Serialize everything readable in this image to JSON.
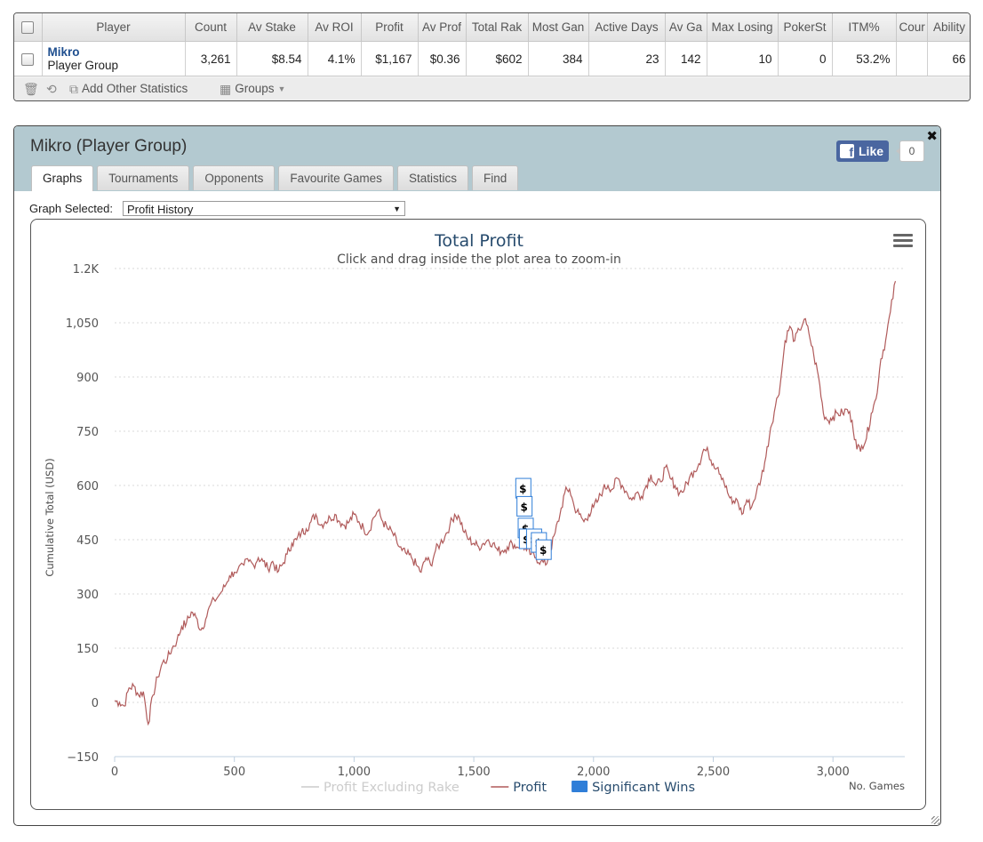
{
  "stats_table": {
    "headers": [
      "Player",
      "Count",
      "Av Stake",
      "Av ROI",
      "Profit",
      "Av Prof",
      "Total Rak",
      "Most Gan",
      "Active Days",
      "Av Ga",
      "Max Losing",
      "PokerSt",
      "ITM%",
      "Cour",
      "Ability"
    ],
    "row": {
      "player_name": "Mikro",
      "player_sub": "Player Group",
      "values": [
        "3,261",
        "$8.54",
        "4.1%",
        "$1,167",
        "$0.36",
        "$602",
        "384",
        "23",
        "142",
        "10",
        "0",
        "53.2%",
        "",
        "66"
      ]
    },
    "toolbar": {
      "add_stats_label": "Add Other Statistics",
      "groups_label": "Groups"
    }
  },
  "profile": {
    "title": "Mikro (Player Group)",
    "fb_like_label": "Like",
    "fb_like_count": "0",
    "tabs": [
      "Graphs",
      "Tournaments",
      "Opponents",
      "Favourite Games",
      "Statistics",
      "Find"
    ],
    "active_tab": "Graphs",
    "graph_selected_label": "Graph Selected:",
    "graph_selected_value": "Profit History"
  },
  "chart_data": {
    "type": "line",
    "title": "Total Profit",
    "subtitle": "Click and drag inside the plot area to zoom-in",
    "xlabel": "No. Games",
    "ylabel": "Cumulative Total (USD)",
    "xlim": [
      0,
      3300
    ],
    "ylim": [
      -150,
      1200
    ],
    "x_ticks": [
      0,
      500,
      1000,
      1500,
      2000,
      2500,
      3000
    ],
    "x_tick_labels": [
      "0",
      "500",
      "1,000",
      "1,500",
      "2,000",
      "2,500",
      "3,000"
    ],
    "y_ticks": [
      -150,
      0,
      150,
      300,
      450,
      600,
      750,
      900,
      1050,
      1200
    ],
    "y_tick_labels": [
      "−150",
      "0",
      "150",
      "300",
      "450",
      "600",
      "750",
      "900",
      "1,050",
      "1.2K"
    ],
    "grid": true,
    "legend_position": "bottom-center",
    "legend": [
      {
        "name": "Profit Excluding Rake",
        "color": "#cccccc",
        "type": "line",
        "visible": false
      },
      {
        "name": "Profit",
        "color": "#b05a5a",
        "type": "line",
        "visible": true
      },
      {
        "name": "Significant Wins",
        "color": "#2f7ed8",
        "type": "flag",
        "visible": true
      }
    ],
    "series": [
      {
        "name": "Profit",
        "color": "#b05a5a",
        "points": [
          [
            0,
            5
          ],
          [
            20,
            0
          ],
          [
            40,
            -10
          ],
          [
            60,
            40
          ],
          [
            80,
            45
          ],
          [
            100,
            20
          ],
          [
            120,
            30
          ],
          [
            140,
            -60
          ],
          [
            160,
            20
          ],
          [
            180,
            70
          ],
          [
            200,
            110
          ],
          [
            220,
            120
          ],
          [
            240,
            150
          ],
          [
            260,
            170
          ],
          [
            280,
            210
          ],
          [
            300,
            220
          ],
          [
            320,
            250
          ],
          [
            340,
            235
          ],
          [
            360,
            200
          ],
          [
            380,
            230
          ],
          [
            400,
            270
          ],
          [
            440,
            300
          ],
          [
            460,
            320
          ],
          [
            480,
            350
          ],
          [
            500,
            360
          ],
          [
            540,
            380
          ],
          [
            560,
            390
          ],
          [
            580,
            380
          ],
          [
            600,
            400
          ],
          [
            620,
            390
          ],
          [
            640,
            370
          ],
          [
            660,
            390
          ],
          [
            680,
            360
          ],
          [
            700,
            380
          ],
          [
            720,
            410
          ],
          [
            740,
            440
          ],
          [
            760,
            450
          ],
          [
            780,
            470
          ],
          [
            800,
            480
          ],
          [
            820,
            500
          ],
          [
            840,
            520
          ],
          [
            860,
            490
          ],
          [
            880,
            500
          ],
          [
            900,
            510
          ],
          [
            920,
            520
          ],
          [
            940,
            500
          ],
          [
            960,
            490
          ],
          [
            980,
            500
          ],
          [
            1000,
            520
          ],
          [
            1020,
            500
          ],
          [
            1040,
            480
          ],
          [
            1060,
            470
          ],
          [
            1080,
            510
          ],
          [
            1100,
            530
          ],
          [
            1120,
            500
          ],
          [
            1140,
            480
          ],
          [
            1160,
            470
          ],
          [
            1180,
            440
          ],
          [
            1200,
            420
          ],
          [
            1220,
            410
          ],
          [
            1240,
            400
          ],
          [
            1260,
            380
          ],
          [
            1280,
            360
          ],
          [
            1300,
            400
          ],
          [
            1320,
            380
          ],
          [
            1340,
            420
          ],
          [
            1360,
            440
          ],
          [
            1380,
            460
          ],
          [
            1400,
            490
          ],
          [
            1420,
            520
          ],
          [
            1440,
            510
          ],
          [
            1460,
            470
          ],
          [
            1480,
            450
          ],
          [
            1500,
            440
          ],
          [
            1520,
            430
          ],
          [
            1540,
            440
          ],
          [
            1560,
            450
          ],
          [
            1580,
            440
          ],
          [
            1600,
            420
          ],
          [
            1620,
            420
          ],
          [
            1640,
            430
          ],
          [
            1660,
            440
          ],
          [
            1680,
            430
          ],
          [
            1700,
            440
          ],
          [
            1720,
            420
          ],
          [
            1740,
            410
          ],
          [
            1760,
            400
          ],
          [
            1780,
            390
          ],
          [
            1800,
            380
          ],
          [
            1820,
            420
          ],
          [
            1840,
            470
          ],
          [
            1860,
            520
          ],
          [
            1880,
            580
          ],
          [
            1900,
            590
          ],
          [
            1920,
            540
          ],
          [
            1940,
            520
          ],
          [
            1960,
            500
          ],
          [
            1980,
            520
          ],
          [
            2000,
            540
          ],
          [
            2020,
            560
          ],
          [
            2040,
            590
          ],
          [
            2060,
            600
          ],
          [
            2080,
            590
          ],
          [
            2100,
            620
          ],
          [
            2120,
            600
          ],
          [
            2140,
            580
          ],
          [
            2160,
            560
          ],
          [
            2180,
            580
          ],
          [
            2200,
            570
          ],
          [
            2220,
            600
          ],
          [
            2240,
            630
          ],
          [
            2260,
            600
          ],
          [
            2280,
            610
          ],
          [
            2300,
            650
          ],
          [
            2320,
            620
          ],
          [
            2340,
            600
          ],
          [
            2360,
            580
          ],
          [
            2380,
            590
          ],
          [
            2400,
            620
          ],
          [
            2420,
            640
          ],
          [
            2440,
            660
          ],
          [
            2460,
            700
          ],
          [
            2480,
            690
          ],
          [
            2500,
            660
          ],
          [
            2520,
            650
          ],
          [
            2540,
            620
          ],
          [
            2560,
            580
          ],
          [
            2580,
            550
          ],
          [
            2600,
            560
          ],
          [
            2620,
            520
          ],
          [
            2640,
            560
          ],
          [
            2660,
            540
          ],
          [
            2680,
            580
          ],
          [
            2700,
            620
          ],
          [
            2720,
            680
          ],
          [
            2740,
            760
          ],
          [
            2760,
            820
          ],
          [
            2780,
            880
          ],
          [
            2800,
            1000
          ],
          [
            2820,
            1040
          ],
          [
            2840,
            1000
          ],
          [
            2860,
            1030
          ],
          [
            2880,
            1060
          ],
          [
            2900,
            1020
          ],
          [
            2920,
            960
          ],
          [
            2940,
            900
          ],
          [
            2960,
            800
          ],
          [
            2980,
            780
          ],
          [
            3000,
            790
          ],
          [
            3020,
            800
          ],
          [
            3040,
            800
          ],
          [
            3060,
            810
          ],
          [
            3080,
            780
          ],
          [
            3100,
            700
          ],
          [
            3120,
            710
          ],
          [
            3140,
            730
          ],
          [
            3160,
            800
          ],
          [
            3180,
            840
          ],
          [
            3200,
            950
          ],
          [
            3220,
            1000
          ],
          [
            3240,
            1080
          ],
          [
            3261,
            1165
          ]
        ]
      }
    ],
    "flags": [
      {
        "x": 1705,
        "y": 590,
        "label": "$"
      },
      {
        "x": 1710,
        "y": 540,
        "label": "$"
      },
      {
        "x": 1715,
        "y": 480,
        "label": "$"
      },
      {
        "x": 1720,
        "y": 450,
        "label": "$"
      },
      {
        "x": 1750,
        "y": 450,
        "label": "$"
      },
      {
        "x": 1770,
        "y": 440,
        "label": "$"
      },
      {
        "x": 1790,
        "y": 420,
        "label": "$"
      }
    ]
  }
}
